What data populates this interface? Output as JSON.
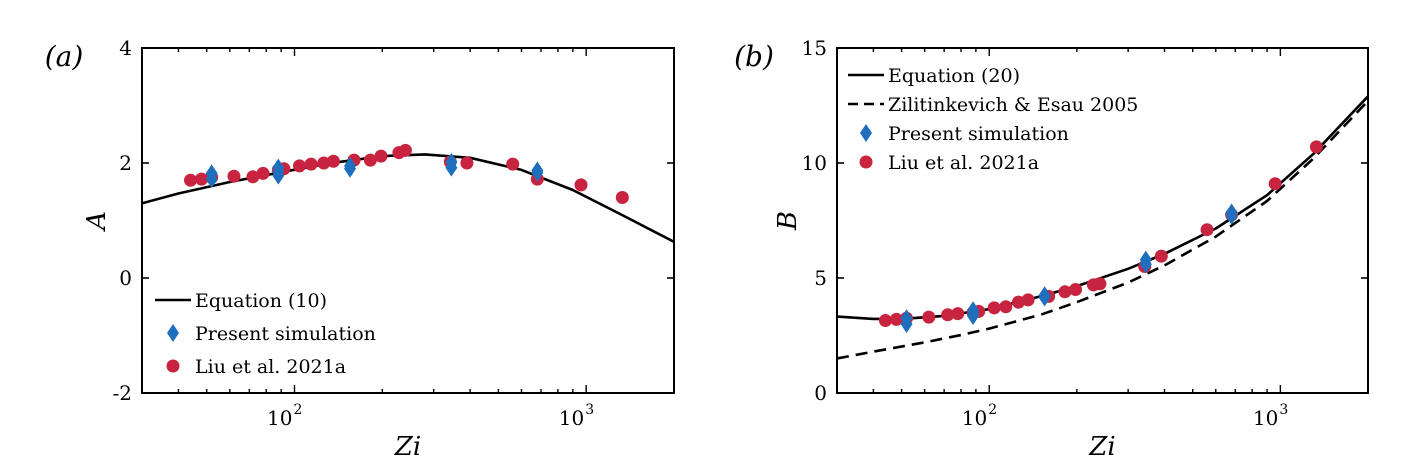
{
  "chart_data": [
    {
      "type": "scatter",
      "panel_label": "(a)",
      "xlabel": "Zi",
      "ylabel": "A",
      "xscale": "log",
      "xlim": [
        30,
        2000
      ],
      "ylim": [
        -2,
        4
      ],
      "x_ticks": [
        {
          "value": 100,
          "base": "10",
          "exp": "2"
        },
        {
          "value": 1000,
          "base": "10",
          "exp": "3"
        }
      ],
      "y_ticks": [
        "4",
        "2",
        "0",
        "-2"
      ],
      "y_tick_values": [
        4,
        2,
        0,
        -2
      ],
      "legend_position": "bottom-left",
      "series": [
        {
          "name": "Equation (10)",
          "kind": "line",
          "style": "solid",
          "color": "#000000",
          "x": [
            30,
            40,
            60,
            90,
            130,
            200,
            280,
            400,
            600,
            900,
            1300,
            2000
          ],
          "y": [
            1.3,
            1.47,
            1.67,
            1.84,
            1.99,
            2.12,
            2.15,
            2.09,
            1.88,
            1.53,
            1.12,
            0.63
          ]
        },
        {
          "name": "Present simulation",
          "kind": "marker",
          "marker": "diamond",
          "color": "#1f6fbf",
          "x": [
            52,
            52,
            88,
            88,
            88,
            155,
            155,
            345,
            345,
            680,
            680
          ],
          "y": [
            1.82,
            1.72,
            1.92,
            1.85,
            1.78,
            1.95,
            1.9,
            2.02,
            1.92,
            1.87,
            1.83
          ]
        },
        {
          "name": "Liu et al. 2021a",
          "kind": "marker",
          "marker": "circle",
          "color": "#c8243f",
          "x": [
            44,
            48,
            52,
            62,
            72,
            78,
            88,
            92,
            104,
            114,
            126,
            136,
            160,
            182,
            198,
            228,
            240,
            342,
            390,
            560,
            680,
            960,
            1330
          ],
          "y": [
            1.7,
            1.72,
            1.75,
            1.77,
            1.76,
            1.82,
            1.88,
            1.9,
            1.95,
            1.98,
            2.0,
            2.03,
            2.05,
            2.05,
            2.12,
            2.18,
            2.22,
            2.02,
            2.0,
            1.98,
            1.72,
            1.62,
            1.4
          ]
        }
      ]
    },
    {
      "type": "scatter",
      "panel_label": "(b)",
      "xlabel": "Zi",
      "ylabel": "B",
      "xscale": "log",
      "xlim": [
        30,
        2000
      ],
      "ylim": [
        0,
        15
      ],
      "x_ticks": [
        {
          "value": 100,
          "base": "10",
          "exp": "2"
        },
        {
          "value": 1000,
          "base": "10",
          "exp": "3"
        }
      ],
      "y_ticks": [
        "15",
        "10",
        "5",
        "0"
      ],
      "y_tick_values": [
        15,
        10,
        5,
        0
      ],
      "legend_position": "top-left",
      "series": [
        {
          "name": "Equation (20)",
          "kind": "line",
          "style": "solid",
          "color": "#000000",
          "x": [
            30,
            40,
            50,
            70,
            100,
            150,
            200,
            300,
            400,
            600,
            900,
            1300,
            2000
          ],
          "y": [
            3.32,
            3.22,
            3.22,
            3.35,
            3.65,
            4.2,
            4.65,
            5.4,
            6.05,
            7.15,
            8.6,
            10.4,
            12.9
          ]
        },
        {
          "name": "Zilitinkevich & Esau 2005",
          "kind": "line",
          "style": "dashed",
          "color": "#000000",
          "x": [
            30,
            40,
            60,
            80,
            100,
            150,
            200,
            300,
            400,
            600,
            900,
            1300,
            2000
          ],
          "y": [
            1.5,
            1.8,
            2.2,
            2.52,
            2.8,
            3.4,
            3.95,
            4.8,
            5.55,
            6.8,
            8.35,
            10.2,
            12.7
          ]
        },
        {
          "name": "Present simulation",
          "kind": "marker",
          "marker": "diamond",
          "color": "#1f6fbf",
          "x": [
            52,
            52,
            88,
            88,
            88,
            155,
            155,
            345,
            345,
            680,
            680
          ],
          "y": [
            3.25,
            3.0,
            3.6,
            3.45,
            3.35,
            4.25,
            4.15,
            5.8,
            5.6,
            7.85,
            7.7
          ]
        },
        {
          "name": "Liu et al. 2021a",
          "kind": "marker",
          "marker": "circle",
          "color": "#c8243f",
          "x": [
            44,
            48,
            52,
            62,
            72,
            78,
            88,
            92,
            104,
            114,
            126,
            136,
            160,
            182,
            198,
            228,
            240,
            342,
            390,
            560,
            680,
            960,
            1330
          ],
          "y": [
            3.15,
            3.2,
            3.25,
            3.3,
            3.4,
            3.45,
            3.5,
            3.55,
            3.7,
            3.75,
            3.95,
            4.05,
            4.2,
            4.4,
            4.5,
            4.7,
            4.75,
            5.5,
            5.95,
            7.1,
            7.75,
            9.1,
            10.7
          ]
        }
      ]
    }
  ]
}
